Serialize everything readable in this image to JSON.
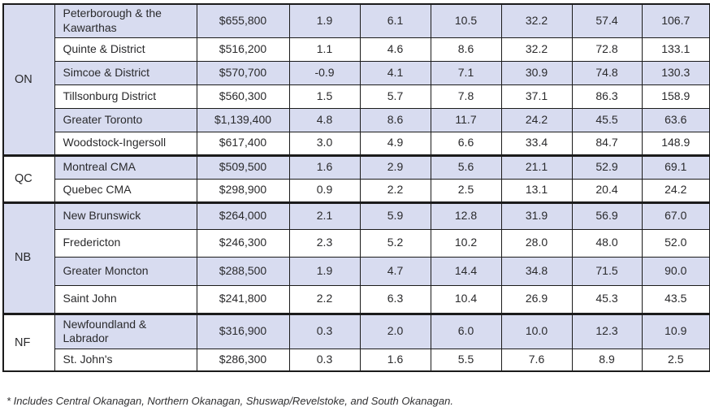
{
  "colors": {
    "row_stripe": "#d8dcf0",
    "row_plain": "#ffffff",
    "border": "#1b1b1b",
    "text": "#2a2a2c"
  },
  "table": {
    "groups": [
      {
        "province": "ON",
        "row_count": 6
      },
      {
        "province": "QC",
        "row_count": 2
      },
      {
        "province": "NB",
        "row_count": 4
      },
      {
        "province": "NF",
        "row_count": 2
      }
    ],
    "rows": [
      {
        "region": "Peterborough & the Kawarthas",
        "price": "$655,800",
        "values": [
          "1.9",
          "6.1",
          "10.5",
          "32.2",
          "57.4",
          "106.7"
        ]
      },
      {
        "region": "Quinte & District",
        "price": "$516,200",
        "values": [
          "1.1",
          "4.6",
          "8.6",
          "32.2",
          "72.8",
          "133.1"
        ]
      },
      {
        "region": "Simcoe & District",
        "price": "$570,700",
        "values": [
          "-0.9",
          "4.1",
          "7.1",
          "30.9",
          "74.8",
          "130.3"
        ]
      },
      {
        "region": "Tillsonburg District",
        "price": "$560,300",
        "values": [
          "1.5",
          "5.7",
          "7.8",
          "37.1",
          "86.3",
          "158.9"
        ]
      },
      {
        "region": "Greater Toronto",
        "price": "$1,139,400",
        "values": [
          "4.8",
          "8.6",
          "11.7",
          "24.2",
          "45.5",
          "63.6"
        ]
      },
      {
        "region": "Woodstock-Ingersoll",
        "price": "$617,400",
        "values": [
          "3.0",
          "4.9",
          "6.6",
          "33.4",
          "84.7",
          "148.9"
        ]
      },
      {
        "region": "Montreal CMA",
        "price": "$509,500",
        "values": [
          "1.6",
          "2.9",
          "5.6",
          "21.1",
          "52.9",
          "69.1"
        ]
      },
      {
        "region": "Quebec CMA",
        "price": "$298,900",
        "values": [
          "0.9",
          "2.2",
          "2.5",
          "13.1",
          "20.4",
          "24.2"
        ]
      },
      {
        "region": "New Brunswick",
        "price": "$264,000",
        "values": [
          "2.1",
          "5.9",
          "12.8",
          "31.9",
          "56.9",
          "67.0"
        ]
      },
      {
        "region": "Fredericton",
        "price": "$246,300",
        "values": [
          "2.3",
          "5.2",
          "10.2",
          "28.0",
          "48.0",
          "52.0"
        ]
      },
      {
        "region": "Greater Moncton",
        "price": "$288,500",
        "values": [
          "1.9",
          "4.7",
          "14.4",
          "34.8",
          "71.5",
          "90.0"
        ]
      },
      {
        "region": "Saint John",
        "price": "$241,800",
        "values": [
          "2.2",
          "6.3",
          "10.4",
          "26.9",
          "45.3",
          "43.5"
        ]
      },
      {
        "region": "Newfoundland & Labrador",
        "price": "$316,900",
        "values": [
          "0.3",
          "2.0",
          "6.0",
          "10.0",
          "12.3",
          "10.9"
        ]
      },
      {
        "region": "St. John's",
        "price": "$286,300",
        "values": [
          "0.3",
          "1.6",
          "5.5",
          "7.6",
          "8.9",
          "2.5"
        ]
      }
    ]
  },
  "footnote": "* Includes Central Okanagan, Northern Okanagan, Shuswap/Revelstoke, and South Okanagan."
}
